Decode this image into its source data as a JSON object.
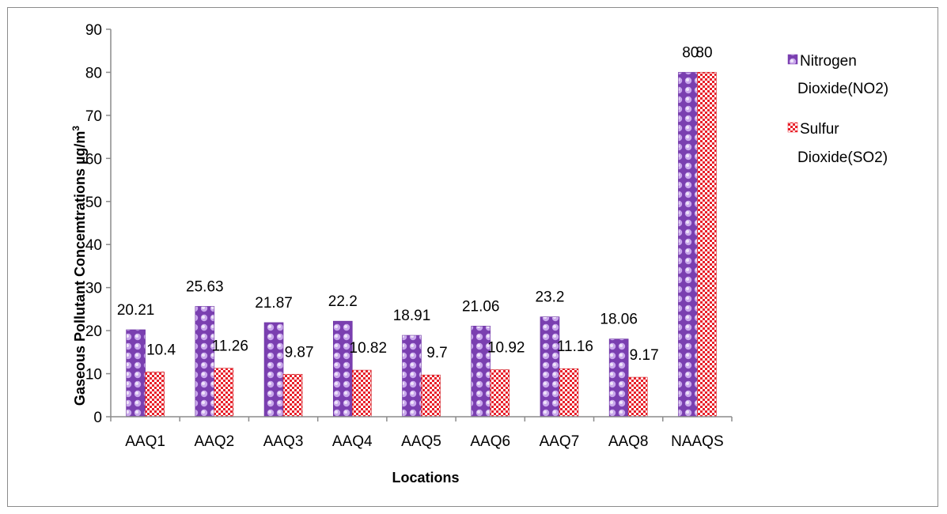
{
  "chart_data": {
    "type": "bar",
    "categories": [
      "AAQ1",
      "AAQ2",
      "AAQ3",
      "AAQ4",
      "AAQ5",
      "AAQ6",
      "AAQ7",
      "AAQ8",
      "NAAQS"
    ],
    "series": [
      {
        "name": "Nitrogen Dioxide(NO2)",
        "legend_lines": [
          "Nitrogen",
          "Dioxide(NO2)"
        ],
        "values": [
          20.21,
          25.63,
          21.87,
          22.2,
          18.91,
          21.06,
          23.2,
          18.06,
          80
        ],
        "labels": [
          "20.21",
          "25.63",
          "21.87",
          "22.2",
          "18.91",
          "21.06",
          "23.2",
          "18.06",
          "80"
        ],
        "color": "#7a3fb0",
        "pattern": "purple-spheres"
      },
      {
        "name": "Sulfur Dioxide(SO2)",
        "legend_lines": [
          "Sulfur",
          "Dioxide(SO2)"
        ],
        "values": [
          10.4,
          11.26,
          9.87,
          10.82,
          9.7,
          10.92,
          11.16,
          9.17,
          80
        ],
        "labels": [
          "10.4",
          "11.26",
          "9.87",
          "10.82",
          "9.7",
          "10.92",
          "11.16",
          "9.17",
          "80"
        ],
        "color": "#e8202a",
        "pattern": "red-checker"
      }
    ],
    "xlabel": "Locations",
    "ylabel": "Gaseous Pollutant Concemtrations µg/m³",
    "ylabel_main": "Gaseous Pollutant Concemtrations µg/m",
    "ylabel_sup": "3",
    "ylim": [
      0,
      90
    ],
    "yticks": [
      "0",
      "10",
      "20",
      "30",
      "40",
      "50",
      "60",
      "70",
      "80",
      "90"
    ],
    "grid": false,
    "legend_position": "right"
  }
}
